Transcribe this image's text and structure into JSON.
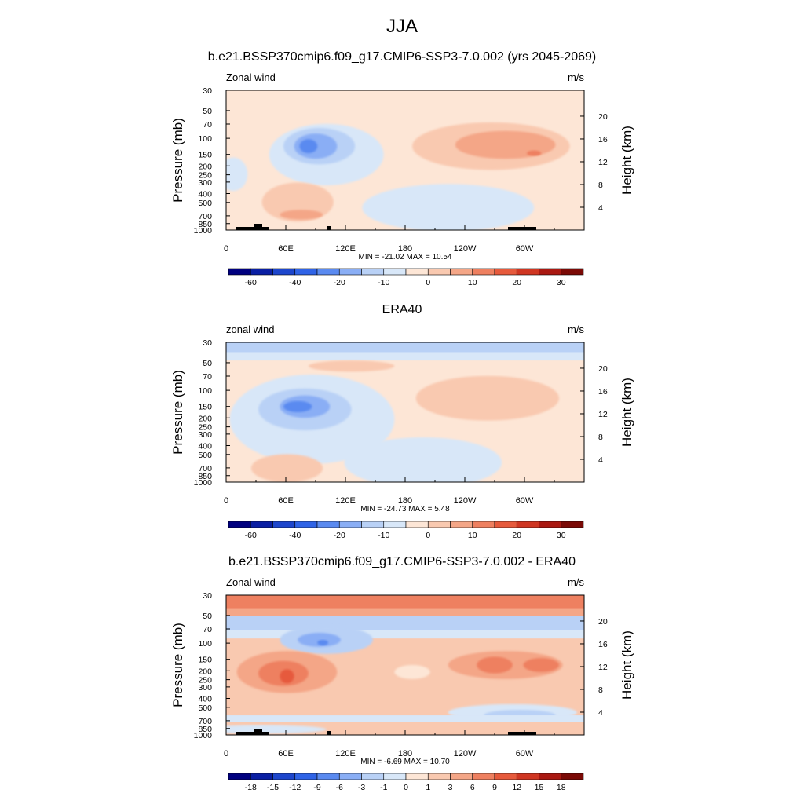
{
  "page_title": "JJA",
  "chart_data": [
    {
      "type": "contour",
      "title": "b.e21.BSSP370cmip6.f09_g17.CMIP6-SSP3-7.0.002 (yrs 2045-2069)",
      "left_label": "Zonal wind",
      "right_label": "m/s",
      "ylabel": "Pressure (mb)",
      "y2label": "Height (km)",
      "x_ticks": [
        "0",
        "60E",
        "120E",
        "180",
        "120W",
        "60W"
      ],
      "y_ticks": [
        "30",
        "50",
        "70",
        "100",
        "150",
        "200",
        "250",
        "300",
        "400",
        "500",
        "700",
        "850",
        "1000"
      ],
      "y2_ticks": [
        "20",
        "16",
        "12",
        "8",
        "4"
      ],
      "stats": "MIN = -21.02  MAX =  10.54",
      "colorbar_labels": [
        "-60",
        "-40",
        "-20",
        "-10",
        "0",
        "10",
        "20",
        "30"
      ],
      "min": -21.02,
      "max": 10.54
    },
    {
      "type": "contour",
      "title": "ERA40",
      "left_label": "zonal wind",
      "right_label": "m/s",
      "ylabel": "Pressure (mb)",
      "y2label": "Height (km)",
      "x_ticks": [
        "0",
        "60E",
        "120E",
        "180",
        "120W",
        "60W"
      ],
      "y_ticks": [
        "30",
        "50",
        "70",
        "100",
        "150",
        "200",
        "250",
        "300",
        "400",
        "500",
        "700",
        "850",
        "1000"
      ],
      "y2_ticks": [
        "20",
        "16",
        "12",
        "8",
        "4"
      ],
      "stats": "MIN = -24.73  MAX =   5.48",
      "colorbar_labels": [
        "-60",
        "-40",
        "-20",
        "-10",
        "0",
        "10",
        "20",
        "30"
      ],
      "min": -24.73,
      "max": 5.48
    },
    {
      "type": "contour",
      "title": "b.e21.BSSP370cmip6.f09_g17.CMIP6-SSP3-7.0.002 - ERA40",
      "left_label": "Zonal wind",
      "right_label": "m/s",
      "ylabel": "Pressure (mb)",
      "y2label": "Height (km)",
      "x_ticks": [
        "0",
        "60E",
        "120E",
        "180",
        "120W",
        "60W"
      ],
      "y_ticks": [
        "30",
        "50",
        "70",
        "100",
        "150",
        "200",
        "250",
        "300",
        "400",
        "500",
        "700",
        "850",
        "1000"
      ],
      "y2_ticks": [
        "20",
        "16",
        "12",
        "8",
        "4"
      ],
      "stats": "MIN =  -6.69  MAX =  10.70",
      "colorbar_labels": [
        "-18",
        "-15",
        "-12",
        "-9",
        "-6",
        "-3",
        "-1",
        "0",
        "1",
        "3",
        "6",
        "9",
        "12",
        "15",
        "18"
      ],
      "min": -6.69,
      "max": 10.7
    }
  ],
  "colors": {
    "palette": [
      "#00007f",
      "#0a1fa3",
      "#1d46cc",
      "#2f63e6",
      "#5a8af0",
      "#8aaef5",
      "#b9d1f6",
      "#d8e7f8",
      "#fde6d6",
      "#f9c9b0",
      "#f4a687",
      "#ee8060",
      "#e65a3c",
      "#cf3622",
      "#a91811",
      "#7b0a06"
    ]
  }
}
